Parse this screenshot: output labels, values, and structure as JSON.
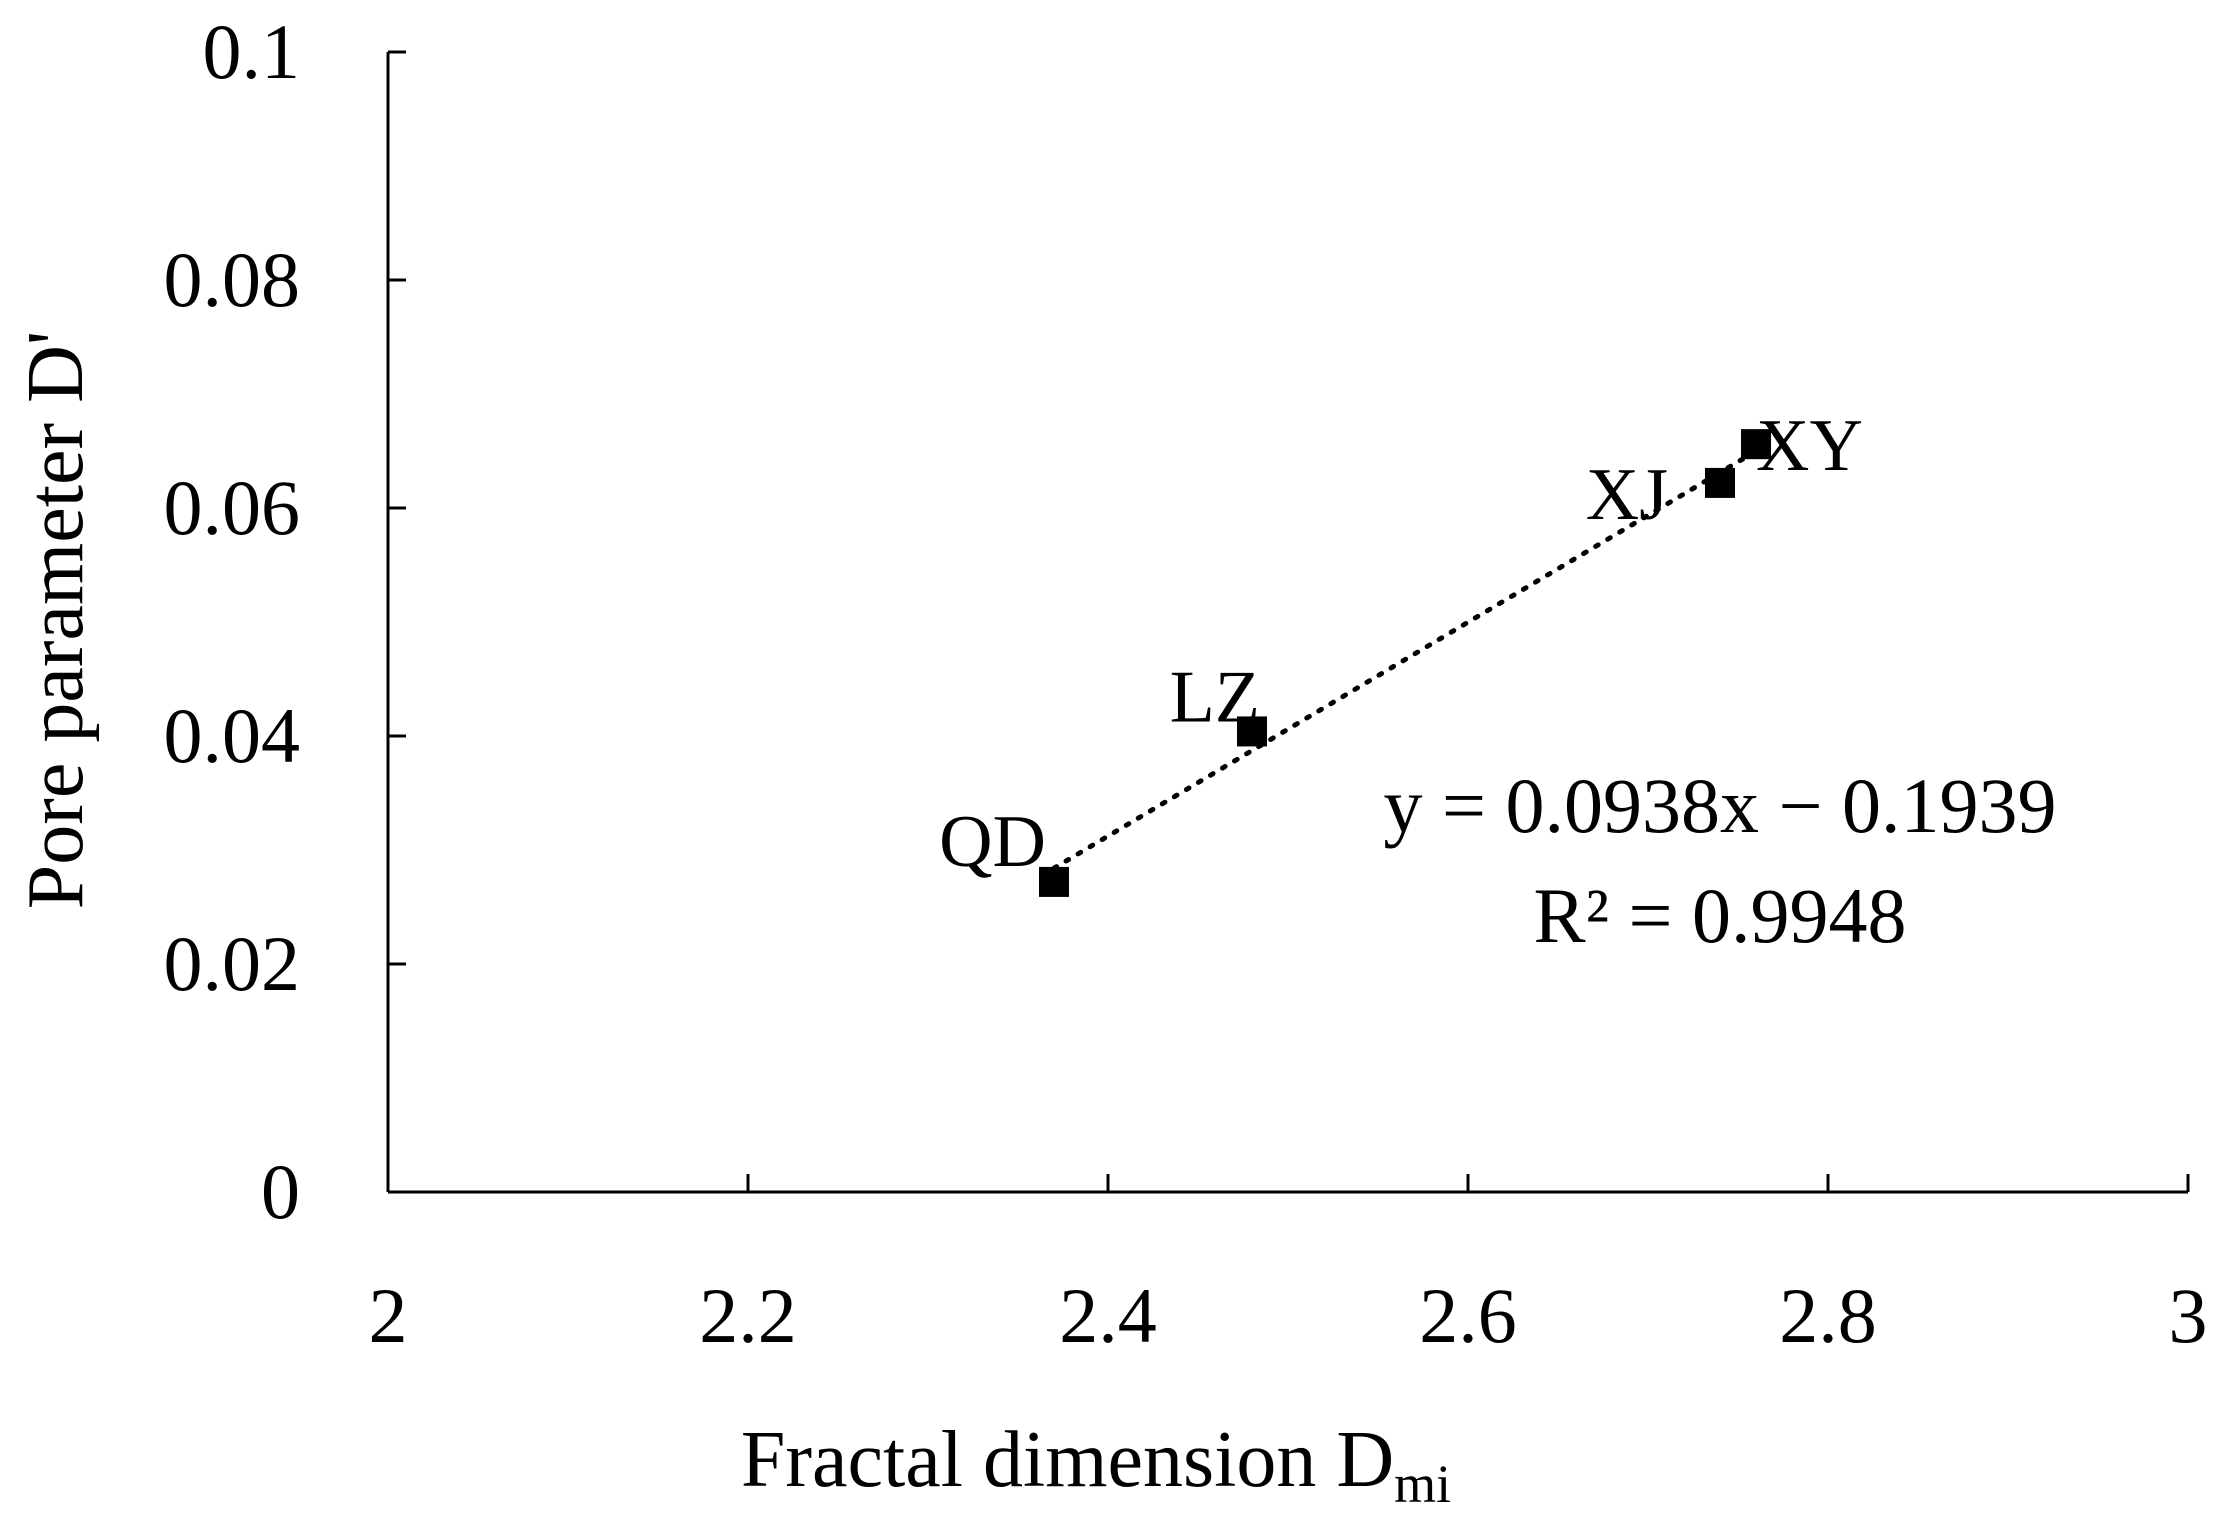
{
  "chart_data": {
    "type": "scatter",
    "xlabel": "Fractal dimension D",
    "xlabel_sub": "mi",
    "ylabel": "Pore parameter D'",
    "xlim": [
      2,
      3
    ],
    "ylim": [
      0,
      0.1
    ],
    "x_ticks": [
      2,
      2.2,
      2.4,
      2.6,
      2.8,
      3
    ],
    "x_tick_labels": [
      "2",
      "2.2",
      "2.4",
      "2.6",
      "2.8",
      "3"
    ],
    "y_ticks": [
      0,
      0.02,
      0.04,
      0.06,
      0.08,
      0.1
    ],
    "y_tick_labels": [
      "0",
      "0.02",
      "0.04",
      "0.06",
      "0.08",
      "0.1"
    ],
    "grid": false,
    "points": [
      {
        "label": "QD",
        "x": 2.37,
        "y": 0.0272
      },
      {
        "label": "LZ",
        "x": 2.48,
        "y": 0.0404
      },
      {
        "label": "XJ",
        "x": 2.74,
        "y": 0.0622
      },
      {
        "label": "XY",
        "x": 2.76,
        "y": 0.0656
      }
    ],
    "trendline": {
      "type": "linear",
      "slope": 0.0938,
      "intercept": -0.1939,
      "x_range": [
        2.37,
        2.76
      ],
      "equation": "y = 0.0938x − 0.1939",
      "r_squared": "R² = 0.9948"
    },
    "marker": "square",
    "colors": {
      "marker": "#000000",
      "axis": "#000000",
      "trendline": "#000000"
    }
  }
}
